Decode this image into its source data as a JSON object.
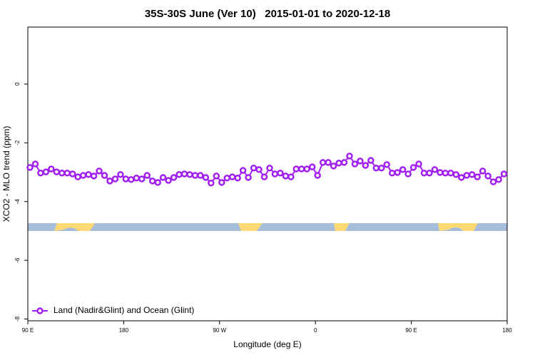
{
  "chart_data": {
    "type": "line",
    "title": "35S-30S June (Ver 10)   2015-01-01 to 2020-12-18",
    "xlabel": "Longitude (deg E)",
    "ylabel": "XCO2 - MLO trend (ppm)",
    "xlim": [
      90,
      540
    ],
    "ylim": [
      -8.06,
      1.94
    ],
    "xticks": [
      {
        "value": 90,
        "label": "90 E"
      },
      180,
      {
        "value": 270,
        "label": "90 W"
      },
      {
        "value": 360,
        "label": "0"
      },
      {
        "value": 450,
        "label": "90 E"
      },
      {
        "value": 540,
        "label": "180"
      }
    ],
    "yticks": [
      -8,
      -6,
      -4,
      -2,
      0
    ],
    "grid": false,
    "legend": "bottom-left",
    "x": [
      92,
      97,
      102,
      107,
      112,
      117,
      122,
      127,
      132,
      137,
      142,
      147,
      152,
      157,
      162,
      167,
      172,
      177,
      182,
      187,
      192,
      197,
      202,
      207,
      212,
      217,
      222,
      227,
      232,
      237,
      242,
      247,
      252,
      257,
      262,
      267,
      272,
      277,
      282,
      287,
      292,
      297,
      302,
      307,
      312,
      317,
      322,
      327,
      332,
      337,
      342,
      347,
      352,
      357,
      362,
      367,
      372,
      377,
      382,
      387,
      392,
      397,
      402,
      407,
      412,
      417,
      422,
      427,
      432,
      437,
      442,
      447,
      452,
      457,
      462,
      467,
      472,
      477,
      482,
      487,
      492,
      497,
      502,
      507,
      512,
      517,
      522,
      527,
      532,
      537
    ],
    "series": [
      {
        "name": "Land (Nadir&Glint) and Ocean (Glint)",
        "color": "#a020f0",
        "values": [
          -2.84,
          -2.72,
          -3.03,
          -2.99,
          -2.89,
          -2.99,
          -3.03,
          -3.03,
          -3.06,
          -3.16,
          -3.11,
          -3.08,
          -3.13,
          -2.96,
          -3.11,
          -3.3,
          -3.23,
          -3.08,
          -3.23,
          -3.25,
          -3.2,
          -3.23,
          -3.11,
          -3.3,
          -3.35,
          -3.18,
          -3.28,
          -3.18,
          -3.08,
          -3.06,
          -3.08,
          -3.11,
          -3.11,
          -3.18,
          -3.37,
          -3.13,
          -3.35,
          -3.2,
          -3.16,
          -3.2,
          -2.94,
          -3.18,
          -2.86,
          -2.91,
          -3.16,
          -2.86,
          -3.06,
          -3.03,
          -3.13,
          -3.16,
          -2.89,
          -2.89,
          -2.89,
          -2.82,
          -3.11,
          -2.67,
          -2.67,
          -2.79,
          -2.69,
          -2.67,
          -2.45,
          -2.72,
          -2.62,
          -2.77,
          -2.6,
          -2.86,
          -2.86,
          -2.74,
          -3.03,
          -3.01,
          -2.91,
          -3.06,
          -2.84,
          -2.72,
          -3.03,
          -3.03,
          -2.91,
          -3.01,
          -3.03,
          -3.03,
          -3.08,
          -3.18,
          -3.11,
          -3.08,
          -3.16,
          -2.96,
          -3.13,
          -3.33,
          -3.25,
          -3.06
        ]
      }
    ]
  }
}
